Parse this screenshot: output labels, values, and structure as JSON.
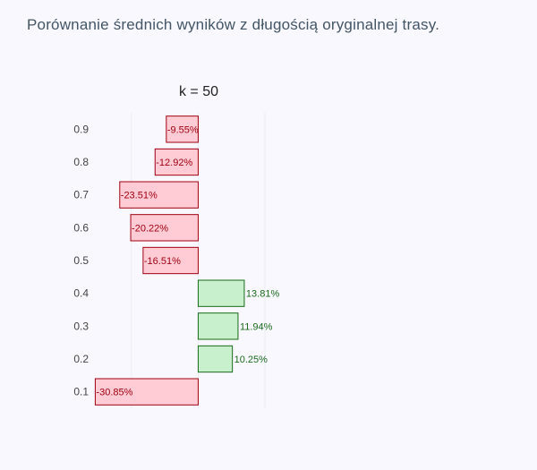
{
  "page_title": "Porównanie średnich wyników z długością oryginalnej trasy.",
  "chart_data": {
    "type": "bar",
    "orientation": "horizontal",
    "title": "k = 50",
    "categories": [
      "0.1",
      "0.2",
      "0.3",
      "0.4",
      "0.5",
      "0.6",
      "0.7",
      "0.8",
      "0.9"
    ],
    "values": [
      -30.85,
      10.25,
      11.94,
      13.81,
      -16.51,
      -20.22,
      -23.51,
      -12.92,
      -9.55
    ],
    "value_labels": [
      "-30.85%",
      "10.25%",
      "11.94%",
      "13.81%",
      "-16.51%",
      "-20.22%",
      "-23.51%",
      "-12.92%",
      "-9.55%"
    ],
    "xlim": [
      -31.5,
      20
    ],
    "colors": {
      "negative_fill": "#ffccd5",
      "negative_stroke": "#a00010",
      "negative_text": "#a00010",
      "positive_fill": "#c8f0cc",
      "positive_stroke": "#1a6a1a",
      "positive_text": "#1a6a1a",
      "grid": "#ececf4"
    },
    "grid": true,
    "legend": "none"
  }
}
